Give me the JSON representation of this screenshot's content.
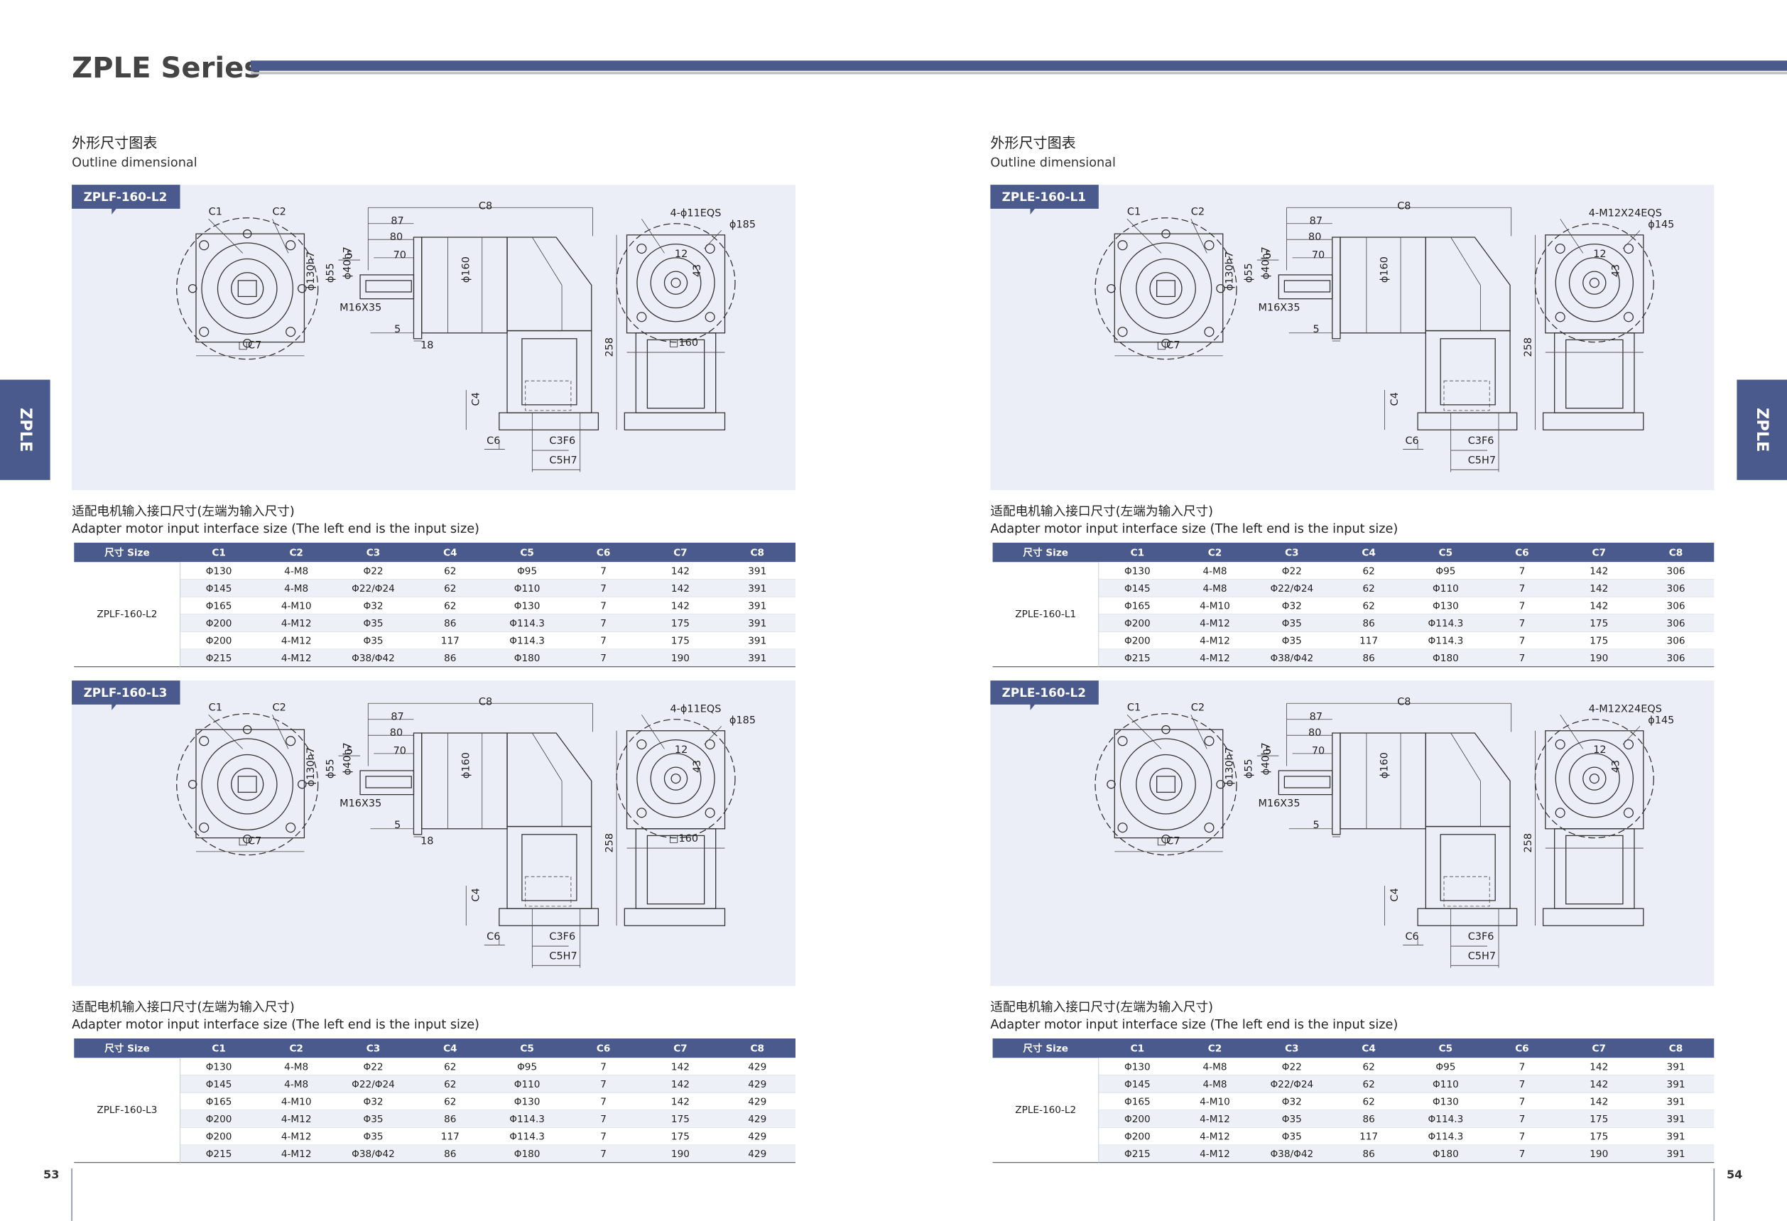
{
  "header": {
    "title": "ZPLE Series"
  },
  "side_tabs": [
    "ZPLE",
    "ZPLE"
  ],
  "page_numbers": [
    "53",
    "54"
  ],
  "pages": [
    {
      "heading_cn": "外形尺寸图表",
      "heading_en": "Outline dimensional",
      "sections": [
        {
          "tag": "ZPLF-160-L2",
          "labels": {
            "c1": "C1",
            "c2": "C2",
            "l1": "87",
            "l2": "80",
            "l3": "70",
            "l4": "5",
            "c8": "C8",
            "d1": "ϕ130h7",
            "d2": "ϕ55",
            "d3": "ϕ40h7",
            "d4": "ϕ160",
            "thread": "M16X35",
            "l5": "5",
            "l6": "18",
            "c7": "□C7",
            "holes": "4-ϕ11EQS",
            "pcd": "ϕ185",
            "h1": "12",
            "h2": "43",
            "sq": "□160",
            "height": "258",
            "c4": "C4",
            "c6": "C6",
            "c3": "C3F6",
            "c5": "C5H7"
          },
          "caption_cn": "适配电机输入接口尺寸(左端为输入尺寸)",
          "caption_en": "Adapter motor input interface size (The left end is the input size)",
          "table": {
            "header": [
              "尺寸 Size",
              "C1",
              "C2",
              "C3",
              "C4",
              "C5",
              "C6",
              "C7",
              "C8"
            ],
            "model": "ZPLF-160-L2",
            "rows": [
              [
                "Φ130",
                "4-M8",
                "Φ22",
                "62",
                "Φ95",
                "7",
                "142",
                "391"
              ],
              [
                "Φ145",
                "4-M8",
                "Φ22/Φ24",
                "62",
                "Φ110",
                "7",
                "142",
                "391"
              ],
              [
                "Φ165",
                "4-M10",
                "Φ32",
                "62",
                "Φ130",
                "7",
                "142",
                "391"
              ],
              [
                "Φ200",
                "4-M12",
                "Φ35",
                "86",
                "Φ114.3",
                "7",
                "175",
                "391"
              ],
              [
                "Φ200",
                "4-M12",
                "Φ35",
                "117",
                "Φ114.3",
                "7",
                "175",
                "391"
              ],
              [
                "Φ215",
                "4-M12",
                "Φ38/Φ42",
                "86",
                "Φ180",
                "7",
                "190",
                "391"
              ]
            ]
          }
        },
        {
          "tag": "ZPLF-160-L3",
          "labels": {
            "c1": "C1",
            "c2": "C2",
            "l1": "87",
            "l2": "80",
            "l3": "70",
            "l4": "5",
            "c8": "C8",
            "d1": "ϕ130h7",
            "d2": "ϕ55",
            "d3": "ϕ40h7",
            "d4": "ϕ160",
            "thread": "M16X35",
            "l5": "5",
            "l6": "18",
            "c7": "□C7",
            "holes": "4-ϕ11EQS",
            "pcd": "ϕ185",
            "h1": "12",
            "h2": "43",
            "sq": "□160",
            "height": "258",
            "c4": "C4",
            "c6": "C6",
            "c3": "C3F6",
            "c5": "C5H7"
          },
          "caption_cn": "适配电机输入接口尺寸(左端为输入尺寸)",
          "caption_en": "Adapter motor input interface size (The left end is the input size)",
          "table": {
            "header": [
              "尺寸 Size",
              "C1",
              "C2",
              "C3",
              "C4",
              "C5",
              "C6",
              "C7",
              "C8"
            ],
            "model": "ZPLF-160-L3",
            "rows": [
              [
                "Φ130",
                "4-M8",
                "Φ22",
                "62",
                "Φ95",
                "7",
                "142",
                "429"
              ],
              [
                "Φ145",
                "4-M8",
                "Φ22/Φ24",
                "62",
                "Φ110",
                "7",
                "142",
                "429"
              ],
              [
                "Φ165",
                "4-M10",
                "Φ32",
                "62",
                "Φ130",
                "7",
                "142",
                "429"
              ],
              [
                "Φ200",
                "4-M12",
                "Φ35",
                "86",
                "Φ114.3",
                "7",
                "175",
                "429"
              ],
              [
                "Φ200",
                "4-M12",
                "Φ35",
                "117",
                "Φ114.3",
                "7",
                "175",
                "429"
              ],
              [
                "Φ215",
                "4-M12",
                "Φ38/Φ42",
                "86",
                "Φ180",
                "7",
                "190",
                "429"
              ]
            ]
          }
        }
      ]
    },
    {
      "heading_cn": "外形尺寸图表",
      "heading_en": "Outline dimensional",
      "sections": [
        {
          "tag": "ZPLE-160-L1",
          "labels": {
            "c1": "C1",
            "c2": "C2",
            "l1": "87",
            "l2": "80",
            "l3": "70",
            "l4": "5",
            "c8": "C8",
            "d1": "ϕ130h7",
            "d2": "ϕ55",
            "d3": "ϕ40h7",
            "d4": "ϕ160",
            "thread": "M16X35",
            "l5": "5",
            "c7": "□C7",
            "holes": "4-M12X24EQS",
            "pcd": "ϕ145",
            "h1": "12",
            "h2": "43",
            "height": "258",
            "c4": "C4",
            "c6": "C6",
            "c3": "C3F6",
            "c5": "C5H7"
          },
          "caption_cn": "适配电机输入接口尺寸(左端为输入尺寸)",
          "caption_en": "Adapter motor input interface size (The left end is the input size)",
          "table": {
            "header": [
              "尺寸 Size",
              "C1",
              "C2",
              "C3",
              "C4",
              "C5",
              "C6",
              "C7",
              "C8"
            ],
            "model": "ZPLE-160-L1",
            "rows": [
              [
                "Φ130",
                "4-M8",
                "Φ22",
                "62",
                "Φ95",
                "7",
                "142",
                "306"
              ],
              [
                "Φ145",
                "4-M8",
                "Φ22/Φ24",
                "62",
                "Φ110",
                "7",
                "142",
                "306"
              ],
              [
                "Φ165",
                "4-M10",
                "Φ32",
                "62",
                "Φ130",
                "7",
                "142",
                "306"
              ],
              [
                "Φ200",
                "4-M12",
                "Φ35",
                "86",
                "Φ114.3",
                "7",
                "175",
                "306"
              ],
              [
                "Φ200",
                "4-M12",
                "Φ35",
                "117",
                "Φ114.3",
                "7",
                "175",
                "306"
              ],
              [
                "Φ215",
                "4-M12",
                "Φ38/Φ42",
                "86",
                "Φ180",
                "7",
                "190",
                "306"
              ]
            ]
          }
        },
        {
          "tag": "ZPLE-160-L2",
          "labels": {
            "c1": "C1",
            "c2": "C2",
            "l1": "87",
            "l2": "80",
            "l3": "70",
            "l4": "5",
            "c8": "C8",
            "d1": "ϕ130h7",
            "d2": "ϕ55",
            "d3": "ϕ40h7",
            "d4": "ϕ160",
            "thread": "M16X35",
            "l5": "5",
            "c7": "□C7",
            "holes": "4-M12X24EQS",
            "pcd": "ϕ145",
            "h1": "12",
            "h2": "43",
            "height": "258",
            "c4": "C4",
            "c6": "C6",
            "c3": "C3F6",
            "c5": "C5H7"
          },
          "caption_cn": "适配电机输入接口尺寸(左端为输入尺寸)",
          "caption_en": "Adapter motor input interface size (The left end is the input size)",
          "table": {
            "header": [
              "尺寸 Size",
              "C1",
              "C2",
              "C3",
              "C4",
              "C5",
              "C6",
              "C7",
              "C8"
            ],
            "model": "ZPLE-160-L2",
            "rows": [
              [
                "Φ130",
                "4-M8",
                "Φ22",
                "62",
                "Φ95",
                "7",
                "142",
                "391"
              ],
              [
                "Φ145",
                "4-M8",
                "Φ22/Φ24",
                "62",
                "Φ110",
                "7",
                "142",
                "391"
              ],
              [
                "Φ165",
                "4-M10",
                "Φ32",
                "62",
                "Φ130",
                "7",
                "142",
                "391"
              ],
              [
                "Φ200",
                "4-M12",
                "Φ35",
                "86",
                "Φ114.3",
                "7",
                "175",
                "391"
              ],
              [
                "Φ200",
                "4-M12",
                "Φ35",
                "117",
                "Φ114.3",
                "7",
                "175",
                "391"
              ],
              [
                "Φ215",
                "4-M12",
                "Φ38/Φ42",
                "86",
                "Φ180",
                "7",
                "190",
                "391"
              ]
            ]
          }
        }
      ]
    }
  ]
}
